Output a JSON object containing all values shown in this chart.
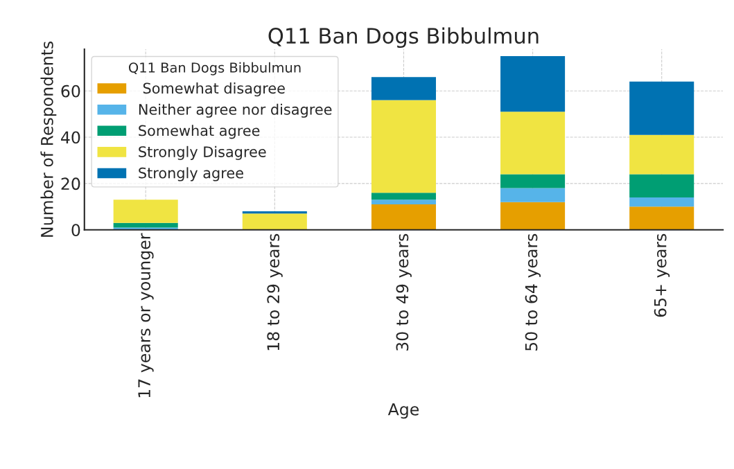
{
  "chart_data": {
    "type": "bar",
    "title": "Q11 Ban Dogs Bibbulmun",
    "xlabel": "Age",
    "ylabel": "Number of Respondents",
    "legend_title": "Q11 Ban Dogs Bibbulmun",
    "categories": [
      "17 years or younger",
      "18 to 29 years",
      "30 to 49 years",
      "50 to 64 years",
      "65+ years"
    ],
    "stacked": true,
    "series": [
      {
        "name": " Somewhat disagree",
        "color": "#e69f00",
        "values": [
          0,
          0,
          11,
          12,
          10
        ]
      },
      {
        "name": "Neither agree nor disagree",
        "color": "#56b4e9",
        "values": [
          1,
          0,
          2,
          6,
          4
        ]
      },
      {
        "name": "Somewhat agree",
        "color": "#009e73",
        "values": [
          2,
          0,
          3,
          6,
          10
        ]
      },
      {
        "name": "Strongly Disagree",
        "color": "#f0e442",
        "values": [
          10,
          7,
          40,
          27,
          17
        ]
      },
      {
        "name": "Strongly agree",
        "color": "#0072b2",
        "values": [
          0,
          1,
          10,
          24,
          23
        ]
      }
    ],
    "ylim": [
      0,
      78
    ],
    "yticks": [
      0,
      20,
      40,
      60
    ],
    "grid": true,
    "legend": "top left"
  }
}
